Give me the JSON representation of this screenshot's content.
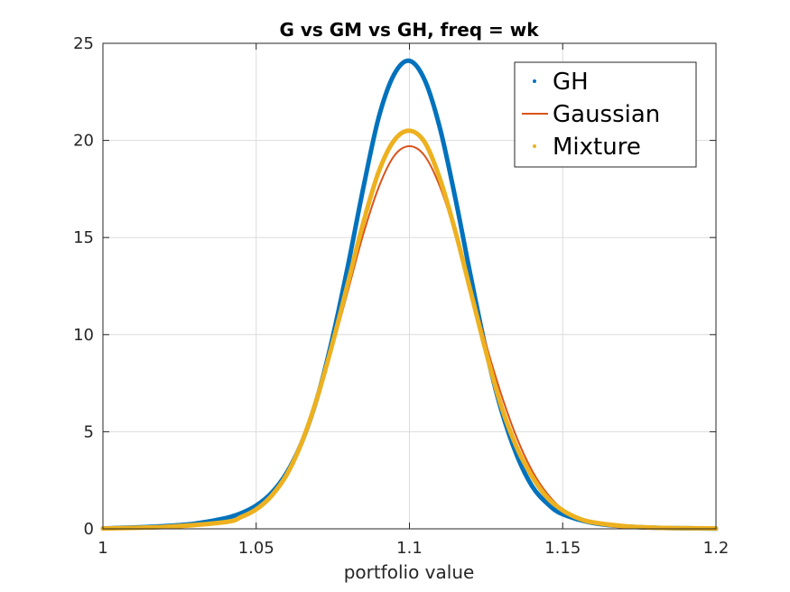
{
  "chart_data": {
    "type": "line",
    "title": "G vs GM vs GH, freq = wk",
    "xlabel": "portfolio value",
    "ylabel": "",
    "xlim": [
      1,
      1.2
    ],
    "ylim": [
      0,
      25
    ],
    "xticks": [
      1,
      1.05,
      1.1,
      1.15,
      1.2
    ],
    "xtick_labels": [
      "1",
      "1.05",
      "1.1",
      "1.15",
      "1.2"
    ],
    "yticks": [
      0,
      5,
      10,
      15,
      20,
      25
    ],
    "ytick_labels": [
      "0",
      "5",
      "10",
      "15",
      "20",
      "25"
    ],
    "grid": true,
    "legend_position": "top-right",
    "series": [
      {
        "name": "GH",
        "color": "#0072BD",
        "marker": "dot",
        "x": [
          1.0,
          1.01,
          1.02,
          1.03,
          1.04,
          1.045,
          1.05,
          1.055,
          1.06,
          1.065,
          1.07,
          1.075,
          1.08,
          1.085,
          1.09,
          1.095,
          1.1,
          1.105,
          1.11,
          1.115,
          1.12,
          1.125,
          1.13,
          1.135,
          1.14,
          1.145,
          1.15,
          1.16,
          1.17,
          1.18,
          1.19,
          1.2
        ],
        "y": [
          0.02,
          0.07,
          0.14,
          0.27,
          0.55,
          0.8,
          1.2,
          1.85,
          2.9,
          4.5,
          6.8,
          9.9,
          13.6,
          17.6,
          21.2,
          23.4,
          24.1,
          23.1,
          20.6,
          17.0,
          13.0,
          9.2,
          6.1,
          3.8,
          2.2,
          1.3,
          0.75,
          0.3,
          0.13,
          0.06,
          0.03,
          0.01
        ]
      },
      {
        "name": "Gaussian",
        "color": "#D95319",
        "marker": "line",
        "x": [
          1.0,
          1.02,
          1.04,
          1.045,
          1.05,
          1.055,
          1.06,
          1.065,
          1.07,
          1.075,
          1.08,
          1.085,
          1.09,
          1.095,
          1.1,
          1.105,
          1.11,
          1.115,
          1.12,
          1.125,
          1.13,
          1.135,
          1.14,
          1.145,
          1.15,
          1.155,
          1.16,
          1.17,
          1.18,
          1.2
        ],
        "y": [
          0.0,
          0.03,
          0.3,
          0.55,
          1.0,
          1.75,
          2.9,
          4.6,
          6.8,
          9.4,
          12.3,
          15.2,
          17.6,
          19.2,
          19.7,
          19.2,
          17.6,
          15.2,
          12.4,
          9.5,
          6.9,
          4.7,
          3.0,
          1.8,
          1.0,
          0.55,
          0.28,
          0.06,
          0.01,
          0.0
        ]
      },
      {
        "name": "Mixture",
        "color": "#EDB120",
        "marker": "dot",
        "x": [
          1.0,
          1.02,
          1.04,
          1.045,
          1.05,
          1.055,
          1.06,
          1.065,
          1.07,
          1.075,
          1.08,
          1.085,
          1.09,
          1.095,
          1.1,
          1.105,
          1.11,
          1.115,
          1.12,
          1.125,
          1.13,
          1.135,
          1.14,
          1.145,
          1.15,
          1.155,
          1.16,
          1.17,
          1.18,
          1.2
        ],
        "y": [
          0.02,
          0.1,
          0.35,
          0.6,
          1.0,
          1.7,
          2.8,
          4.5,
          6.8,
          9.6,
          12.7,
          15.8,
          18.4,
          20.0,
          20.5,
          19.9,
          18.0,
          15.3,
          12.2,
          9.1,
          6.3,
          4.2,
          2.7,
          1.6,
          0.95,
          0.55,
          0.33,
          0.14,
          0.06,
          0.02
        ]
      }
    ]
  }
}
